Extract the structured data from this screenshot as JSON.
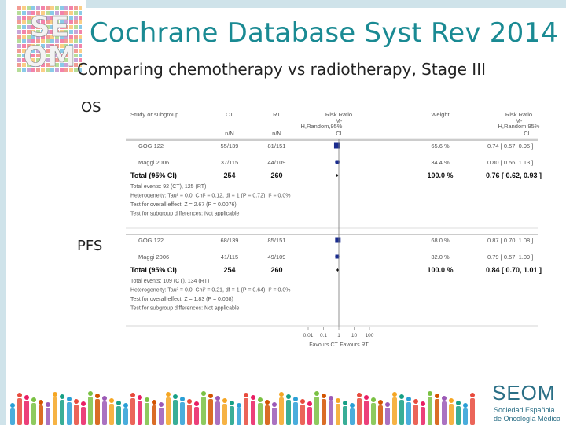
{
  "title": "Cochrane Database Syst Rev 2014",
  "subtitle": "Comparing chemotherapy vs radiotherapy, Stage III",
  "labels": {
    "os": "OS",
    "pfs": "PFS"
  },
  "logo_top": {
    "text": [
      "SE",
      "OM"
    ],
    "colors": [
      "#e84a3c",
      "#f5a623",
      "#7ac143",
      "#2a9fd6",
      "#9b59b6",
      "#e91e63"
    ]
  },
  "seom_logo": {
    "word": "SEOM",
    "line1": "Sociedad Española",
    "line2": "de Oncología Médica",
    "color": "#2a6f86"
  },
  "forest": {
    "headers": {
      "study": "Study or subgroup",
      "ct": "CT",
      "rt": "RT",
      "rr1": "Risk Ratio",
      "rr2": "M-",
      "rr3": "H,Random,95%",
      "rr4": "CI",
      "weight": "Weight",
      "rrr1": "Risk Ratio",
      "rrr2": "M-",
      "rrr3": "H,Random,95%",
      "rrr4": "CI",
      "ct_n": "n/N",
      "rt_n": "n/N"
    },
    "os": {
      "rows": [
        {
          "study": "GOG 122",
          "ct": "55/139",
          "rt": "81/151",
          "weight": "65.6 %",
          "ci": "0.74 [ 0.57, 0.95 ]",
          "rr": 0.74,
          "lo": 0.57,
          "hi": 0.95
        },
        {
          "study": "Maggi 2006",
          "ct": "37/115",
          "rt": "44/109",
          "weight": "34.4 %",
          "ci": "0.80 [ 0.56, 1.13 ]",
          "rr": 0.8,
          "lo": 0.56,
          "hi": 1.13
        }
      ],
      "total": {
        "label": "Total (95% CI)",
        "ct": "254",
        "rt": "260",
        "weight": "100.0 %",
        "ci": "0.76 [ 0.62, 0.93 ]",
        "rr": 0.76,
        "lo": 0.62,
        "hi": 0.93
      },
      "notes": [
        "Total events: 92 (CT), 125 (RT)",
        "Heterogeneity: Tau² = 0.0; Chi² = 0.12, df = 1 (P = 0.72); I² = 0.0%",
        "Test for overall effect: Z = 2.67 (P = 0.0076)",
        "Test for subgroup differences: Not applicable"
      ]
    },
    "pfs": {
      "rows": [
        {
          "study": "GOG 122",
          "ct": "68/139",
          "rt": "85/151",
          "weight": "68.0 %",
          "ci": "0.87 [ 0.70, 1.08 ]",
          "rr": 0.87,
          "lo": 0.7,
          "hi": 1.08
        },
        {
          "study": "Maggi 2006",
          "ct": "41/115",
          "rt": "49/109",
          "weight": "32.0 %",
          "ci": "0.79 [ 0.57, 1.09 ]",
          "rr": 0.79,
          "lo": 0.57,
          "hi": 1.09
        }
      ],
      "total": {
        "label": "Total (95% CI)",
        "ct": "254",
        "rt": "260",
        "weight": "100.0 %",
        "ci": "0.84 [ 0.70, 1.01 ]",
        "rr": 0.84,
        "lo": 0.7,
        "hi": 1.01
      },
      "notes": [
        "Total events: 109 (CT), 134 (RT)",
        "Heterogeneity: Tau² = 0.0; Chi² = 0.21, df = 1 (P = 0.64); I² = 0.0%",
        "Test for overall effect: Z = 1.83 (P = 0.068)",
        "Test for subgroup differences: Not applicable"
      ]
    },
    "axis": {
      "ticks": [
        "0.01",
        "0.1",
        "1",
        "10",
        "100"
      ],
      "favours_left": "Favours CT",
      "favours_right": "Favours RT"
    }
  }
}
